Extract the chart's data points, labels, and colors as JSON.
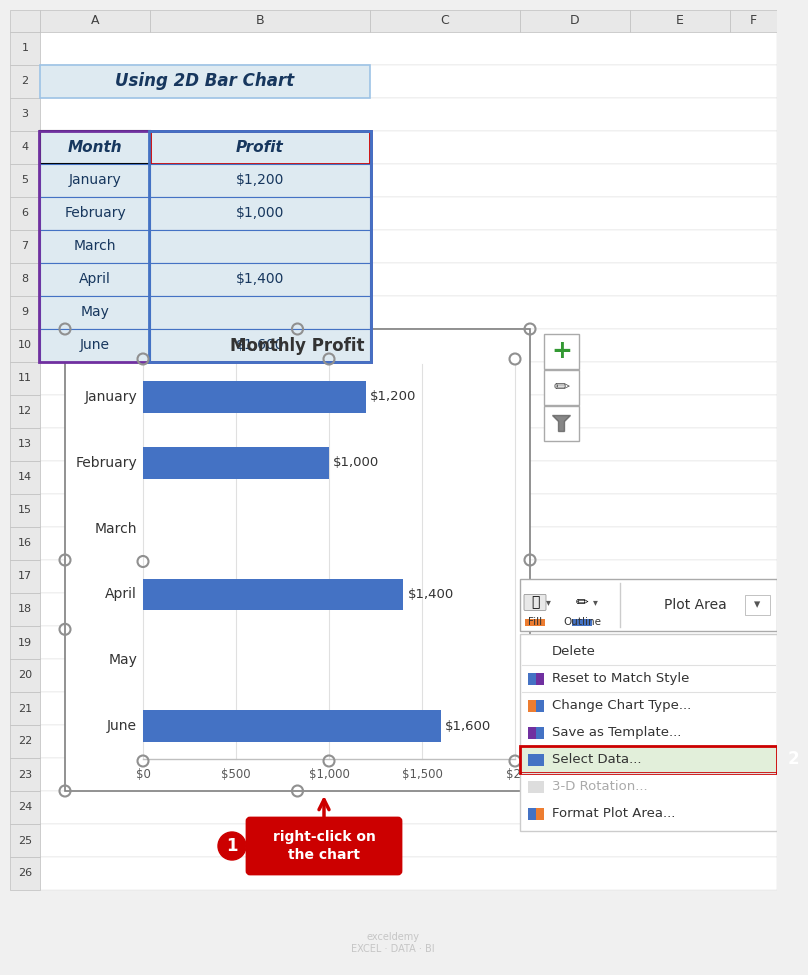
{
  "title": "Using 2D Bar Chart",
  "table_headers": [
    "Month",
    "Profit"
  ],
  "table_months": [
    "January",
    "February",
    "March",
    "April",
    "May",
    "June"
  ],
  "table_profits": [
    "$1,200",
    "$1,000",
    "",
    "$1,400",
    "",
    "$1,600"
  ],
  "chart_title": "Monthly Profit",
  "chart_months": [
    "June",
    "May",
    "April",
    "March",
    "February",
    "January"
  ],
  "chart_values": [
    1600,
    0,
    1400,
    0,
    1000,
    1200
  ],
  "chart_labels": [
    "$1,600",
    "",
    "$1,400",
    "",
    "$1,000",
    "$1,200"
  ],
  "bar_color": "#4472C4",
  "x_ticks": [
    0,
    500,
    1000,
    1500,
    2000
  ],
  "x_tick_labels": [
    "$0",
    "$500",
    "$1,000",
    "$1,500",
    "$2,"
  ],
  "context_menu_items": [
    "Delete",
    "Reset to Match Style",
    "Change Chart Type...",
    "Save as Template...",
    "Select Data...",
    "3-D Rotation...",
    "Format Plot Area..."
  ],
  "context_menu_highlight": "Select Data...",
  "context_menu_highlight_bg": "#E2EFDA",
  "annotation_text": "right-click on\nthe chart",
  "annotation_bg": "#CC0000",
  "annotation_text_color": "#FFFFFF"
}
